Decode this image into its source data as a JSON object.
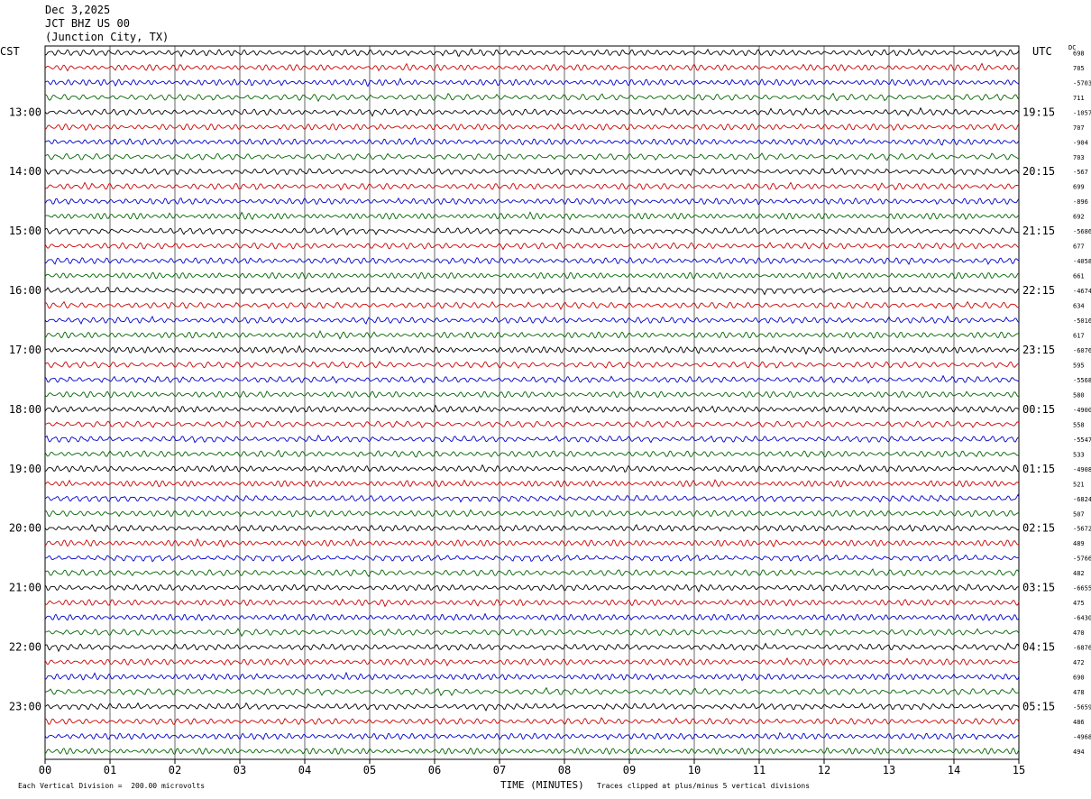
{
  "header": {
    "date": "Dec 3,2025",
    "station": "JCT BHZ US 00",
    "location": "(Junction City, TX)"
  },
  "axis_labels": {
    "left_zone": "CST",
    "right_zone": "UTC",
    "dc": "DC"
  },
  "footer": {
    "left": "Each Vertical Division =  200.00 microvolts",
    "middle": "TIME (MINUTES)",
    "right": "Traces clipped at plus/minus 5 vertical divisions"
  },
  "colors": {
    "trace_cycle": [
      "#000000",
      "#cc0000",
      "#0000cc",
      "#006400"
    ],
    "grid": "#000000"
  },
  "chart_data": {
    "type": "line",
    "description_of_axes": "helicorder",
    "xlabel": "TIME (MINUTES)",
    "x_ticks": [
      "00",
      "01",
      "02",
      "03",
      "04",
      "05",
      "06",
      "07",
      "08",
      "09",
      "10",
      "11",
      "12",
      "13",
      "14",
      "15"
    ],
    "xlim": [
      0,
      15
    ],
    "left_hour_labels": [
      "13:00",
      "14:00",
      "15:00",
      "16:00",
      "17:00",
      "18:00",
      "19:00",
      "20:00",
      "21:00",
      "22:00",
      "23:00"
    ],
    "right_hour_labels": [
      "19:15",
      "20:15",
      "21:15",
      "22:15",
      "23:15",
      "00:15",
      "01:15",
      "02:15",
      "03:15",
      "04:15",
      "05:15"
    ],
    "traces_per_hour": 4,
    "trace_count": 48,
    "dc_offsets": [
      "698",
      "705",
      "-5703",
      "711",
      "-1057",
      "707",
      "-904",
      "703",
      "-567",
      "699",
      "-896",
      "692",
      "-5686",
      "677",
      "-4058",
      "661",
      "-4674",
      "634",
      "-5016",
      "617",
      "-6076",
      "595",
      "-5568",
      "580",
      "-4900",
      "558",
      "-5547",
      "533",
      "-4908",
      "521",
      "-6824",
      "507",
      "-5672",
      "489",
      "-5766",
      "482",
      "-6655",
      "475",
      "-6430",
      "470",
      "-6876",
      "472",
      "690",
      "478",
      "-5659",
      "486",
      "-4968",
      "494"
    ],
    "vertical_division_microvolts": 200.0,
    "clip_divisions": 5
  }
}
